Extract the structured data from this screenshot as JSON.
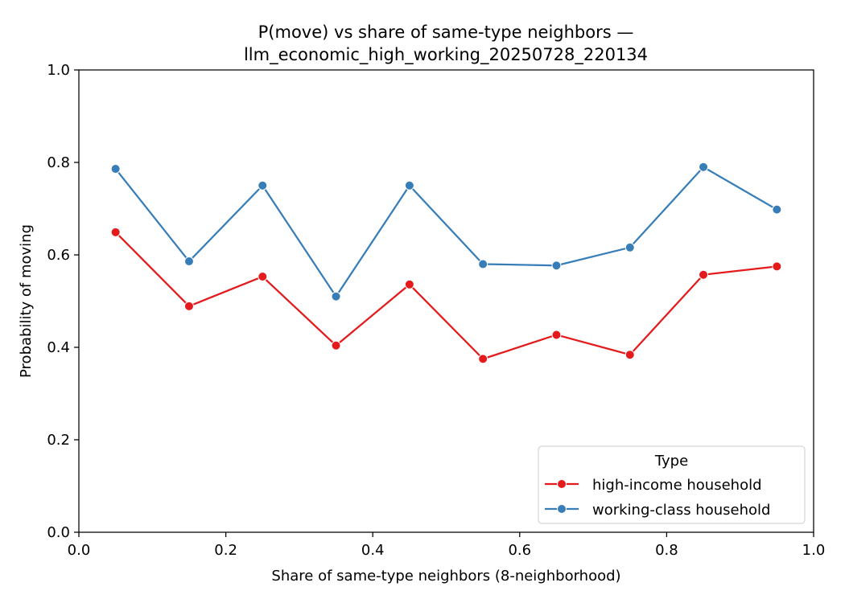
{
  "chart_data": {
    "type": "line",
    "title_line1": "P(move) vs share of same-type neighbors —",
    "title_line2": "llm_economic_high_working_20250728_220134",
    "xlabel": "Share of same-type neighbors (8-neighborhood)",
    "ylabel": "Probability of moving",
    "xlim": [
      0.0,
      1.0
    ],
    "ylim": [
      0.0,
      1.0
    ],
    "xticks": [
      "0.0",
      "0.2",
      "0.4",
      "0.6",
      "0.8",
      "1.0"
    ],
    "yticks": [
      "0.0",
      "0.2",
      "0.4",
      "0.6",
      "0.8",
      "1.0"
    ],
    "grid": false,
    "legend": {
      "title": "Type",
      "placement": "lower-right"
    },
    "x": [
      0.05,
      0.15,
      0.25,
      0.35,
      0.45,
      0.55,
      0.65,
      0.75,
      0.85,
      0.95
    ],
    "series": [
      {
        "name": "high-income household",
        "color": "#e41a1c",
        "marker": "circle",
        "values": [
          0.649,
          0.489,
          0.553,
          0.404,
          0.536,
          0.375,
          0.427,
          0.384,
          0.557,
          0.575
        ]
      },
      {
        "name": "working-class household",
        "color": "#377eb8",
        "marker": "circle",
        "values": [
          0.786,
          0.586,
          0.75,
          0.51,
          0.75,
          0.58,
          0.577,
          0.616,
          0.79,
          0.698
        ]
      }
    ]
  }
}
